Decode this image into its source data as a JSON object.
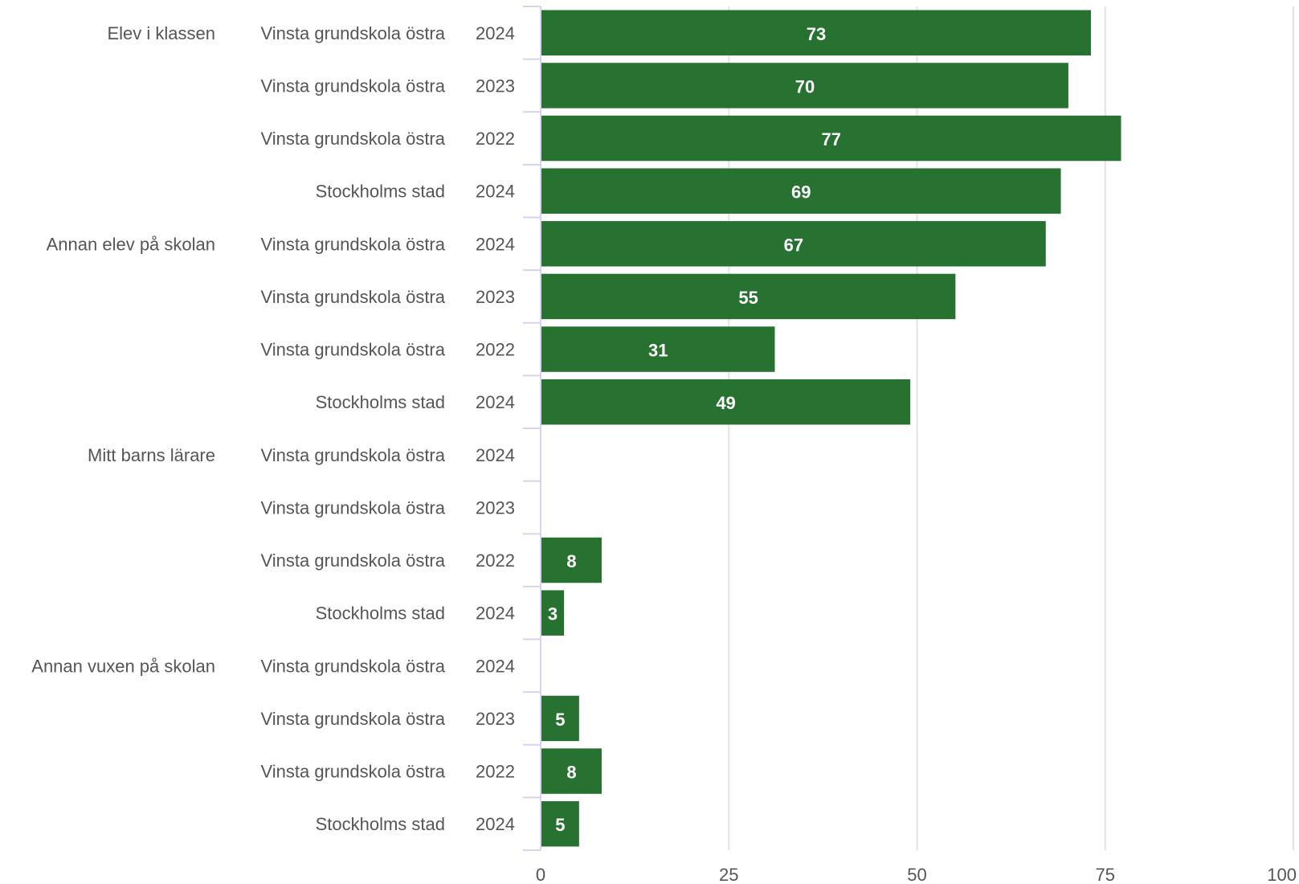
{
  "chart_data": {
    "type": "bar",
    "orientation": "horizontal",
    "bar_color": "#277230",
    "grid": true,
    "xlim": [
      0,
      100
    ],
    "xticks": [
      "0",
      "25",
      "50",
      "75",
      "100"
    ],
    "groups": [
      {
        "label": "Elev i klassen",
        "rows": [
          {
            "unit": "Vinsta grundskola östra",
            "year": "2024",
            "value": 73
          },
          {
            "unit": "Vinsta grundskola östra",
            "year": "2023",
            "value": 70
          },
          {
            "unit": "Vinsta grundskola östra",
            "year": "2022",
            "value": 77
          },
          {
            "unit": "Stockholms stad",
            "year": "2024",
            "value": 69
          }
        ]
      },
      {
        "label": "Annan elev på skolan",
        "rows": [
          {
            "unit": "Vinsta grundskola östra",
            "year": "2024",
            "value": 67
          },
          {
            "unit": "Vinsta grundskola östra",
            "year": "2023",
            "value": 55
          },
          {
            "unit": "Vinsta grundskola östra",
            "year": "2022",
            "value": 31
          },
          {
            "unit": "Stockholms stad",
            "year": "2024",
            "value": 49
          }
        ]
      },
      {
        "label": "Mitt barns lärare",
        "rows": [
          {
            "unit": "Vinsta grundskola östra",
            "year": "2024",
            "value": null
          },
          {
            "unit": "Vinsta grundskola östra",
            "year": "2023",
            "value": null
          },
          {
            "unit": "Vinsta grundskola östra",
            "year": "2022",
            "value": 8
          },
          {
            "unit": "Stockholms stad",
            "year": "2024",
            "value": 3
          }
        ]
      },
      {
        "label": "Annan vuxen på skolan",
        "rows": [
          {
            "unit": "Vinsta grundskola östra",
            "year": "2024",
            "value": null
          },
          {
            "unit": "Vinsta grundskola östra",
            "year": "2023",
            "value": 5
          },
          {
            "unit": "Vinsta grundskola östra",
            "year": "2022",
            "value": 8
          },
          {
            "unit": "Stockholms stad",
            "year": "2024",
            "value": 5
          }
        ]
      }
    ]
  }
}
